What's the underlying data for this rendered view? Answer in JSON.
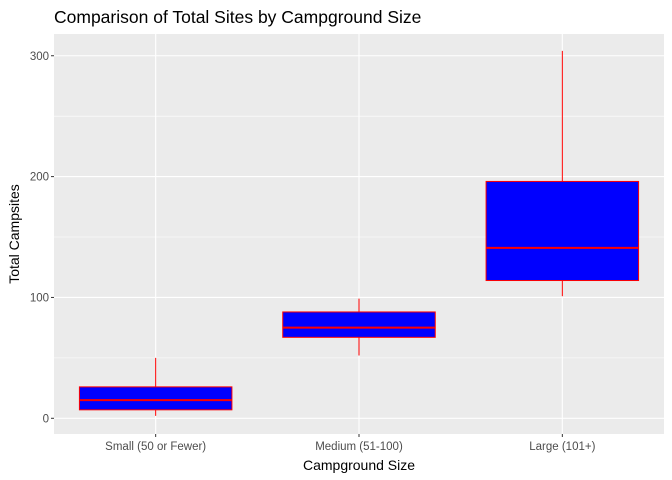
{
  "chart_data": {
    "type": "box",
    "title": "Comparison of Total Sites by Campground Size",
    "xlabel": "Campground Size",
    "ylabel": "Total Campsites",
    "categories": [
      "Small (50 or Fewer)",
      "Medium (51-100)",
      "Large (101+)"
    ],
    "boxes": [
      {
        "category": "Small (50 or Fewer)",
        "min": 2,
        "q1": 7,
        "median": 15,
        "q3": 26,
        "max": 50
      },
      {
        "category": "Medium (51-100)",
        "min": 52,
        "q1": 67,
        "median": 75,
        "q3": 88,
        "max": 99
      },
      {
        "category": "Large (101+)",
        "min": 101,
        "q1": 114,
        "median": 141,
        "q3": 196,
        "max": 304
      }
    ],
    "yticks": [
      0,
      100,
      200,
      300
    ],
    "ylim": [
      -13,
      318
    ],
    "grid": true,
    "legend": "none",
    "colors": {
      "panel_background": "#EBEBEB",
      "grid": "#FFFFFF",
      "box_fill": "#0000FF",
      "box_outline": "#FF0000",
      "whisker": "#FF0000",
      "median": "#FF0000",
      "tick_text": "#4D4D4D",
      "tick_mark": "#333333"
    }
  }
}
